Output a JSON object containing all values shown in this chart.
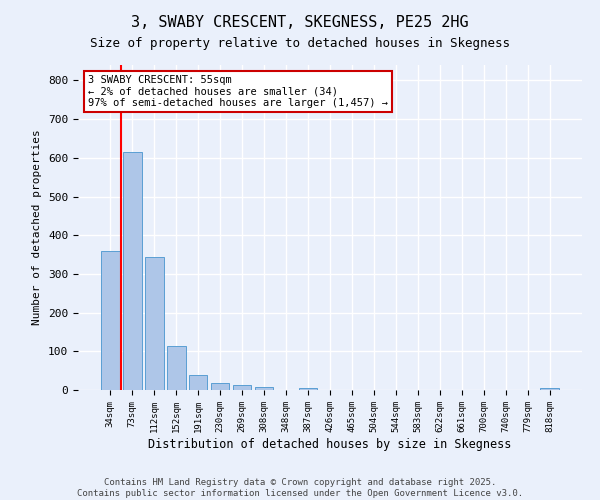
{
  "title": "3, SWABY CRESCENT, SKEGNESS, PE25 2HG",
  "subtitle": "Size of property relative to detached houses in Skegness",
  "xlabel": "Distribution of detached houses by size in Skegness",
  "ylabel": "Number of detached properties",
  "categories": [
    "34sqm",
    "73sqm",
    "112sqm",
    "152sqm",
    "191sqm",
    "230sqm",
    "269sqm",
    "308sqm",
    "348sqm",
    "387sqm",
    "426sqm",
    "465sqm",
    "504sqm",
    "544sqm",
    "583sqm",
    "622sqm",
    "661sqm",
    "700sqm",
    "740sqm",
    "779sqm",
    "818sqm"
  ],
  "values": [
    360,
    614,
    343,
    113,
    38,
    18,
    14,
    8,
    0,
    5,
    0,
    0,
    0,
    0,
    0,
    0,
    0,
    0,
    0,
    0,
    5
  ],
  "bar_color": "#aec6e8",
  "bar_edge_color": "#5a9fd4",
  "annotation_text": "3 SWABY CRESCENT: 55sqm\n← 2% of detached houses are smaller (34)\n97% of semi-detached houses are larger (1,457) →",
  "annotation_box_color": "#ffffff",
  "annotation_box_edge_color": "#cc0000",
  "ylim": [
    0,
    840
  ],
  "yticks": [
    0,
    100,
    200,
    300,
    400,
    500,
    600,
    700,
    800
  ],
  "background_color": "#eaf0fb",
  "grid_color": "#ffffff",
  "footer_line1": "Contains HM Land Registry data © Crown copyright and database right 2025.",
  "footer_line2": "Contains public sector information licensed under the Open Government Licence v3.0."
}
